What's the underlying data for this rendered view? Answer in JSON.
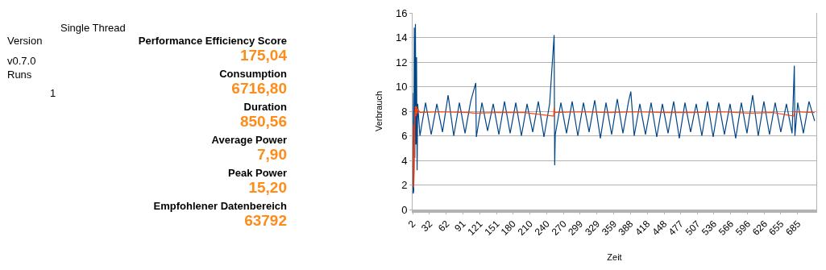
{
  "chart_data": [
    {
      "type": "other",
      "title": "Single Thread",
      "color": "#ff8c1a",
      "annotations": [
        "Version",
        "v0.7.0",
        "Runs",
        "1",
        "Performance Efficiency Score",
        "175,04",
        "Consumption",
        "6716,80",
        "Duration",
        "850,56",
        "Average Power",
        "7,90",
        "Peak Power",
        "15,20",
        "Empfohlener Datenbereich",
        "63792"
      ]
    },
    {
      "type": "line",
      "xlabel": "Zeit",
      "ylabel": "Verbrauch",
      "xlim": [
        2,
        718
      ],
      "ylim": [
        0,
        16
      ],
      "yticks": [
        0,
        2,
        4,
        6,
        8,
        10,
        12,
        14,
        16
      ],
      "xticks": [
        2,
        32,
        62,
        91,
        121,
        151,
        180,
        210,
        240,
        270,
        299,
        329,
        359,
        388,
        418,
        448,
        477,
        507,
        536,
        566,
        596,
        626,
        655,
        685
      ],
      "grid": "y",
      "marker": "none",
      "line_style": "solid",
      "series": [
        {
          "color": "#004586",
          "x": [
            2,
            3,
            4,
            5,
            6,
            7,
            8,
            9,
            10,
            11,
            15,
            25,
            35,
            45,
            55,
            65,
            75,
            85,
            95,
            105,
            114,
            115,
            125,
            135,
            145,
            155,
            165,
            175,
            185,
            195,
            205,
            215,
            225,
            235,
            245,
            253,
            254,
            255,
            265,
            275,
            285,
            295,
            305,
            315,
            325,
            335,
            345,
            355,
            365,
            375,
            385,
            389,
            395,
            405,
            415,
            425,
            435,
            445,
            455,
            465,
            475,
            485,
            495,
            505,
            515,
            525,
            535,
            545,
            555,
            565,
            575,
            585,
            595,
            605,
            615,
            625,
            635,
            645,
            655,
            665,
            675,
            679,
            680,
            685,
            695,
            705,
            715
          ],
          "values": [
            9.5,
            1.3,
            1.5,
            14.8,
            4.2,
            15.1,
            5.3,
            12.4,
            3.2,
            8.6,
            6.0,
            8.7,
            6.1,
            8.6,
            6.3,
            9.3,
            6.0,
            8.7,
            6.2,
            8.8,
            10.3,
            5.9,
            8.7,
            6.4,
            8.6,
            6.1,
            8.8,
            6.2,
            8.7,
            6.0,
            8.6,
            6.3,
            8.8,
            5.9,
            8.6,
            14.2,
            3.6,
            6.1,
            8.7,
            6.2,
            8.8,
            6.0,
            8.7,
            6.3,
            8.9,
            5.8,
            8.7,
            6.1,
            9.0,
            6.2,
            8.8,
            9.6,
            6.0,
            8.6,
            6.1,
            8.7,
            5.9,
            8.6,
            6.2,
            8.8,
            5.8,
            8.7,
            6.3,
            8.6,
            6.0,
            8.8,
            5.9,
            8.7,
            6.1,
            8.6,
            5.8,
            8.7,
            6.2,
            9.3,
            6.0,
            8.8,
            6.1,
            8.7,
            6.3,
            8.6,
            6.2,
            11.7,
            6.0,
            8.7,
            6.2,
            8.8,
            7.2
          ]
        },
        {
          "color": "#ff420e",
          "x": [
            2,
            3,
            4,
            5,
            6,
            7,
            8,
            9,
            10,
            11,
            15,
            50,
            100,
            113,
            150,
            200,
            252,
            253,
            254,
            300,
            350,
            400,
            450,
            500,
            550,
            600,
            640,
            678,
            680,
            715
          ],
          "values": [
            7.0,
            6.7,
            1.8,
            3.5,
            7.6,
            8.4,
            7.6,
            8.4,
            7.8,
            8.2,
            7.9,
            7.95,
            7.9,
            7.85,
            7.9,
            7.9,
            7.6,
            8.3,
            7.9,
            7.95,
            7.9,
            7.95,
            7.9,
            7.9,
            7.95,
            7.85,
            7.9,
            7.6,
            7.95,
            7.9
          ]
        }
      ]
    }
  ]
}
